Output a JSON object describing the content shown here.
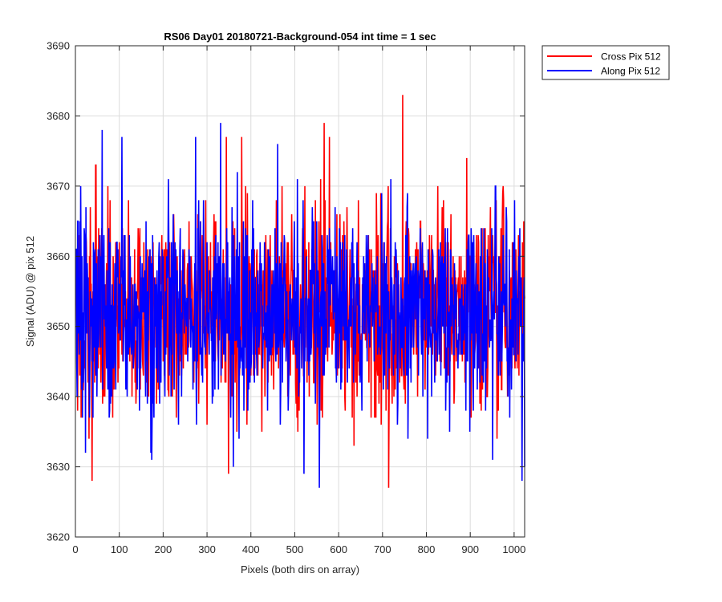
{
  "chart_data": {
    "type": "line",
    "title": "RS06 Day01 20180721-Background-054 int time = 1 sec",
    "xlabel": "Pixels (both dirs on array)",
    "ylabel": "Signal (ADU) @ pix 512",
    "xlim": [
      0,
      1024
    ],
    "ylim": [
      3620,
      3690
    ],
    "xticks": [
      0,
      100,
      200,
      300,
      400,
      500,
      600,
      700,
      800,
      900,
      1000
    ],
    "yticks": [
      3620,
      3630,
      3640,
      3650,
      3660,
      3670,
      3680,
      3690
    ],
    "grid": true,
    "legend_position": "outside-top-right",
    "n_points": 1024,
    "noise_seed": 20180721,
    "series": [
      {
        "name": "Cross Pix 512",
        "color": "#ff0000",
        "mean": 3652.5,
        "std": 7.2,
        "peaks": [
          {
            "x": 745,
            "y": 3683
          },
          {
            "x": 566,
            "y": 3679
          },
          {
            "x": 343,
            "y": 3677
          },
          {
            "x": 578,
            "y": 3677
          },
          {
            "x": 378,
            "y": 3677
          },
          {
            "x": 713,
            "y": 3627
          },
          {
            "x": 37,
            "y": 3628
          },
          {
            "x": 348,
            "y": 3629
          },
          {
            "x": 30,
            "y": 3634
          },
          {
            "x": 12,
            "y": 3637
          }
        ]
      },
      {
        "name": "Along Pix 512",
        "color": "#0000ff",
        "mean": 3652.5,
        "std": 7.2,
        "peaks": [
          {
            "x": 60,
            "y": 3678
          },
          {
            "x": 330,
            "y": 3679
          },
          {
            "x": 105,
            "y": 3677
          },
          {
            "x": 273,
            "y": 3677
          },
          {
            "x": 460,
            "y": 3676
          },
          {
            "x": 555,
            "y": 3627
          },
          {
            "x": 1017,
            "y": 3628
          },
          {
            "x": 359,
            "y": 3630
          },
          {
            "x": 520,
            "y": 3629
          },
          {
            "x": 173,
            "y": 3631
          },
          {
            "x": 950,
            "y": 3631
          },
          {
            "x": 22,
            "y": 3632
          },
          {
            "x": 1023,
            "y": 3630
          }
        ]
      }
    ]
  }
}
